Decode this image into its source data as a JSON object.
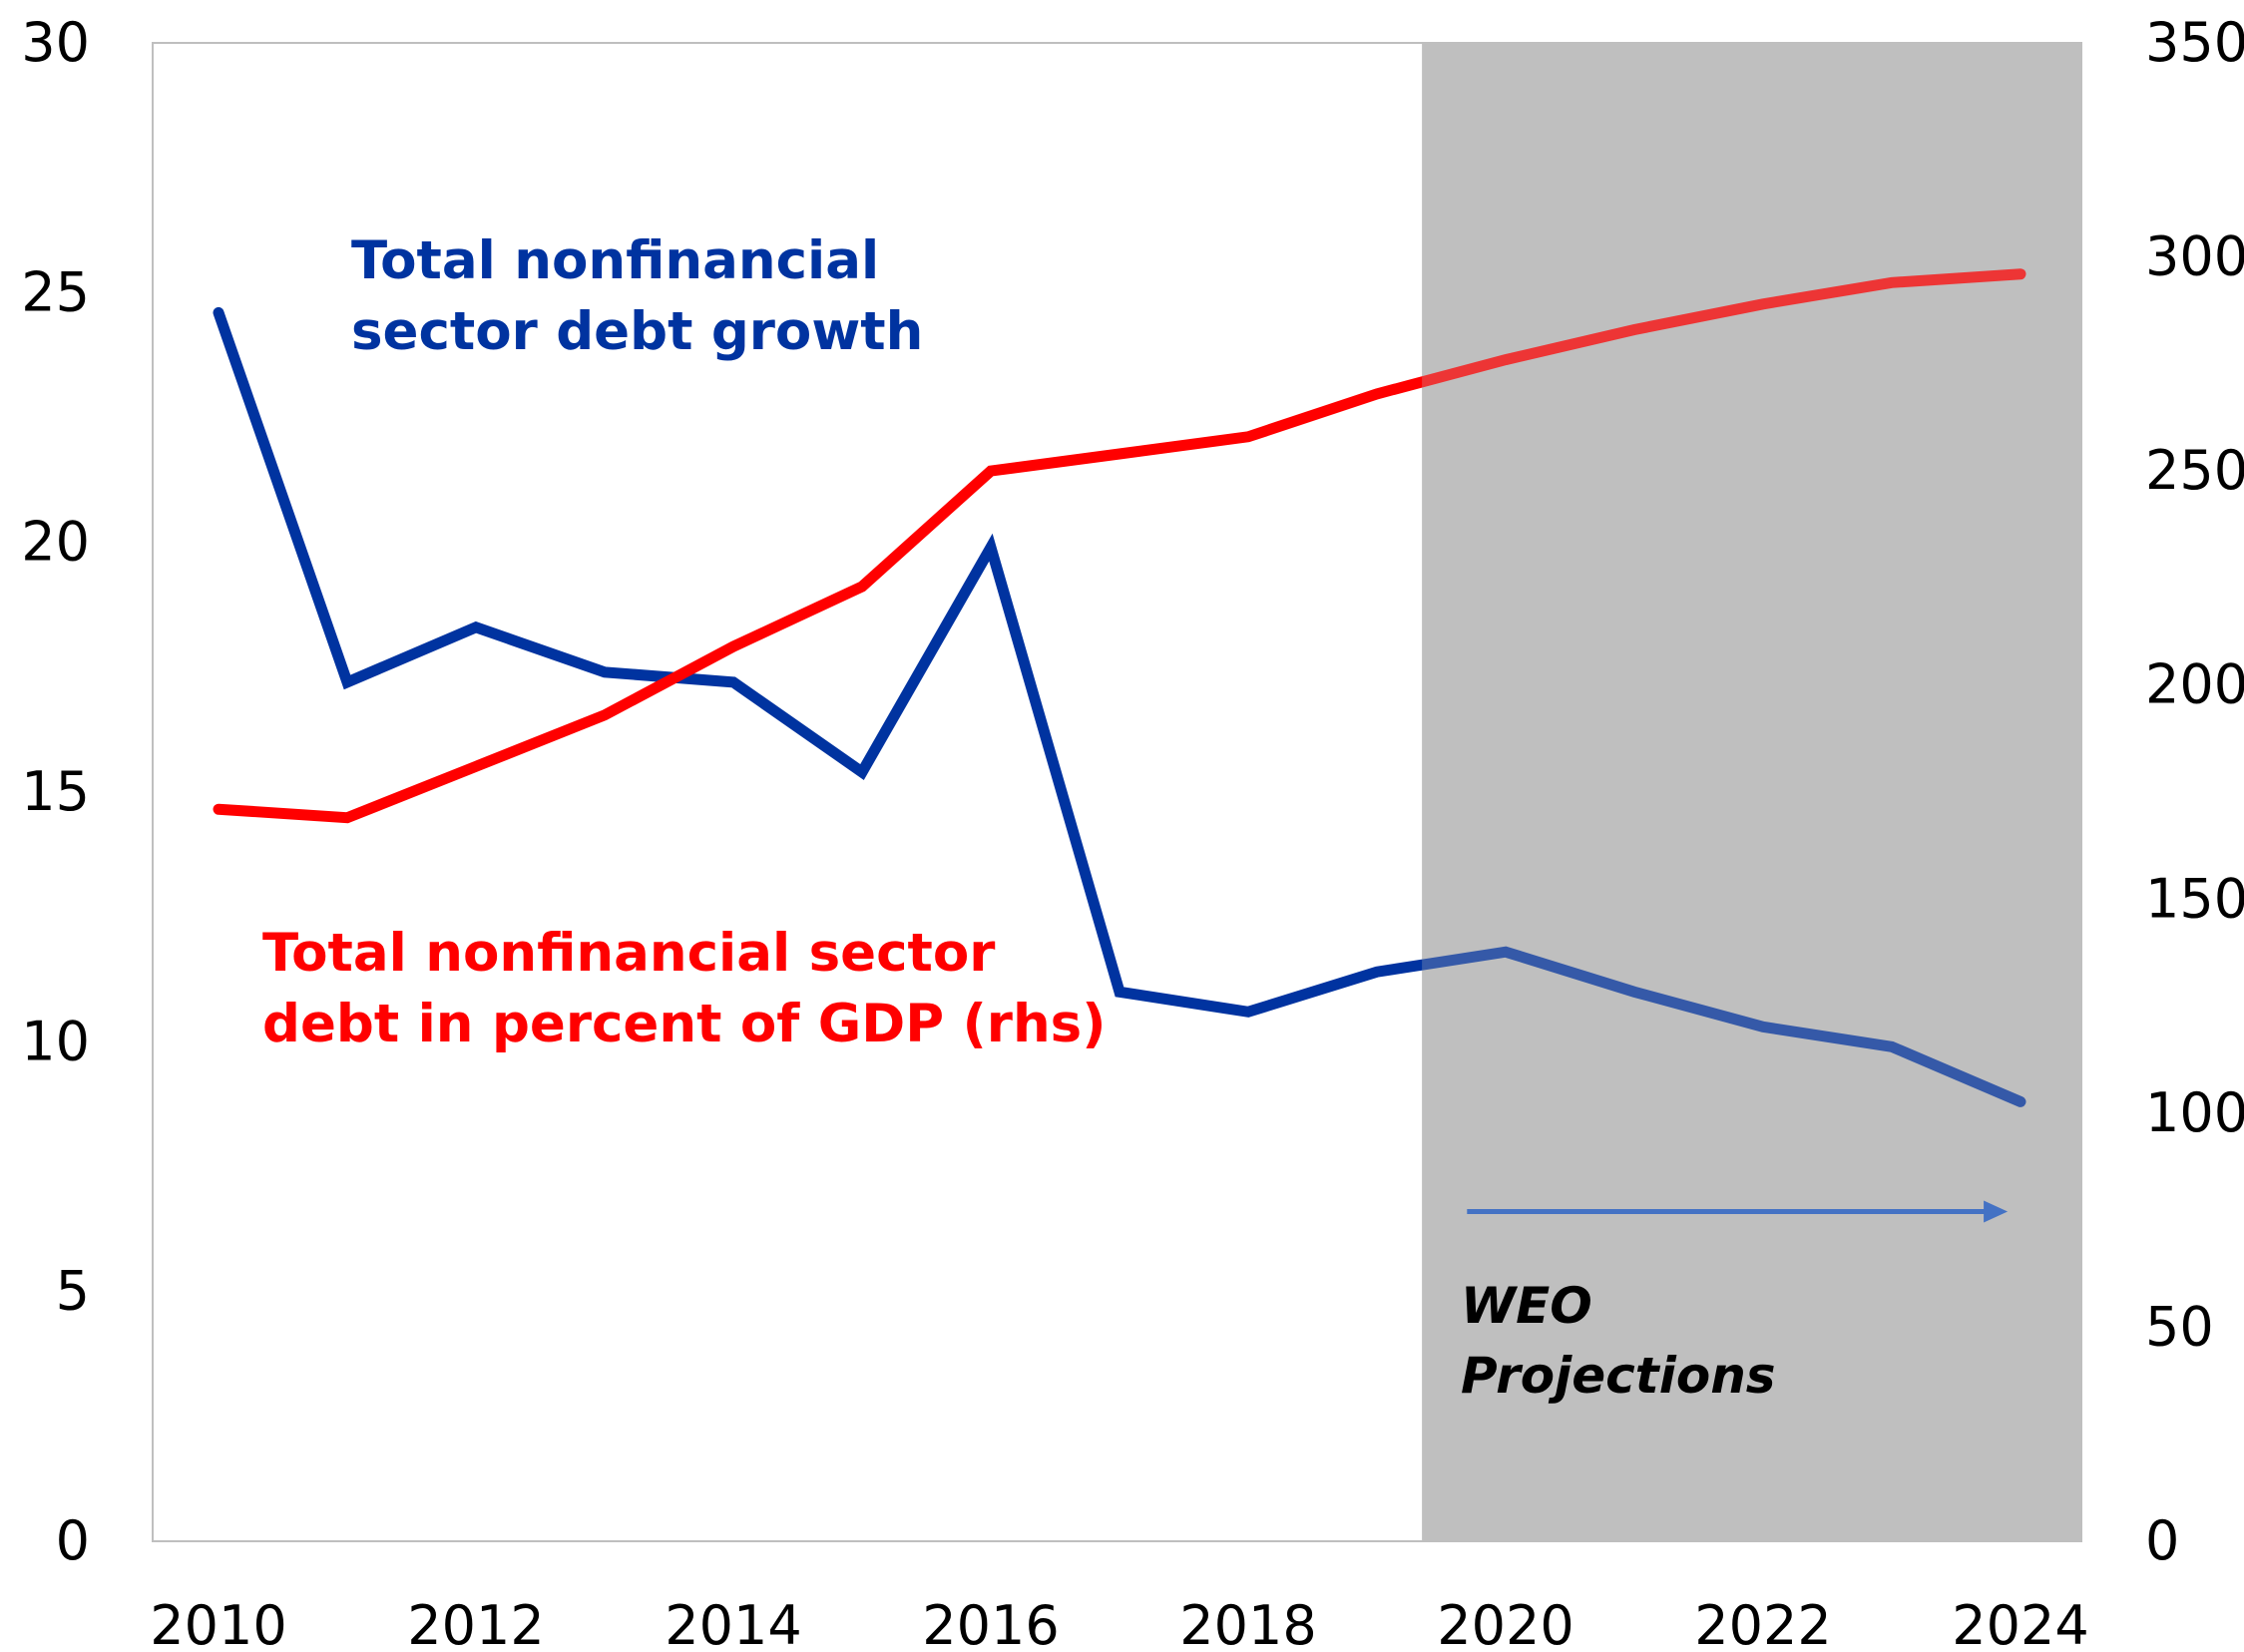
{
  "chart_data": {
    "type": "line",
    "title": "",
    "x": [
      2010,
      2011,
      2012,
      2013,
      2014,
      2015,
      2016,
      2017,
      2018,
      2019,
      2020,
      2021,
      2022,
      2023,
      2024
    ],
    "x_tick_labels": [
      "2010",
      "2012",
      "2014",
      "2016",
      "2018",
      "2020",
      "2022",
      "2024"
    ],
    "y_left": {
      "range": [
        0,
        30
      ],
      "ticks": [
        "0",
        "5",
        "10",
        "15",
        "20",
        "25",
        "30"
      ]
    },
    "y_right": {
      "range": [
        0,
        350
      ],
      "ticks": [
        "0",
        "50",
        "100",
        "150",
        "200",
        "250",
        "300",
        "350"
      ]
    },
    "grid": false,
    "series": [
      {
        "name": "Total nonfinancial sector debt growth",
        "label_lines": [
          "Total nonfinancial",
          "sector debt growth"
        ],
        "axis": "left",
        "color": "#0033A0",
        "values": [
          24.6,
          17.2,
          18.3,
          17.4,
          17.2,
          15.4,
          19.9,
          11.0,
          10.6,
          11.4,
          11.8,
          11.0,
          10.3,
          9.9,
          8.8
        ]
      },
      {
        "name": "Total nonfinancial sector debt in percent of GDP (rhs)",
        "label_lines": [
          "Total nonfinancial sector",
          "debt in percent of GDP (rhs)"
        ],
        "axis": "right",
        "color": "#FF0000",
        "values": [
          171,
          169,
          181,
          193,
          209,
          223,
          250,
          254,
          258,
          268,
          276,
          283,
          289,
          294,
          296
        ]
      }
    ],
    "shaded_region": {
      "from": 2019.35,
      "to": 2025.0,
      "color": "#BFBFBF",
      "label_lines": [
        "WEO",
        "Projections"
      ]
    },
    "arrow": {
      "from": 2019.7,
      "to": 2023.9,
      "value": 6.6,
      "color": "#4472C4"
    }
  }
}
